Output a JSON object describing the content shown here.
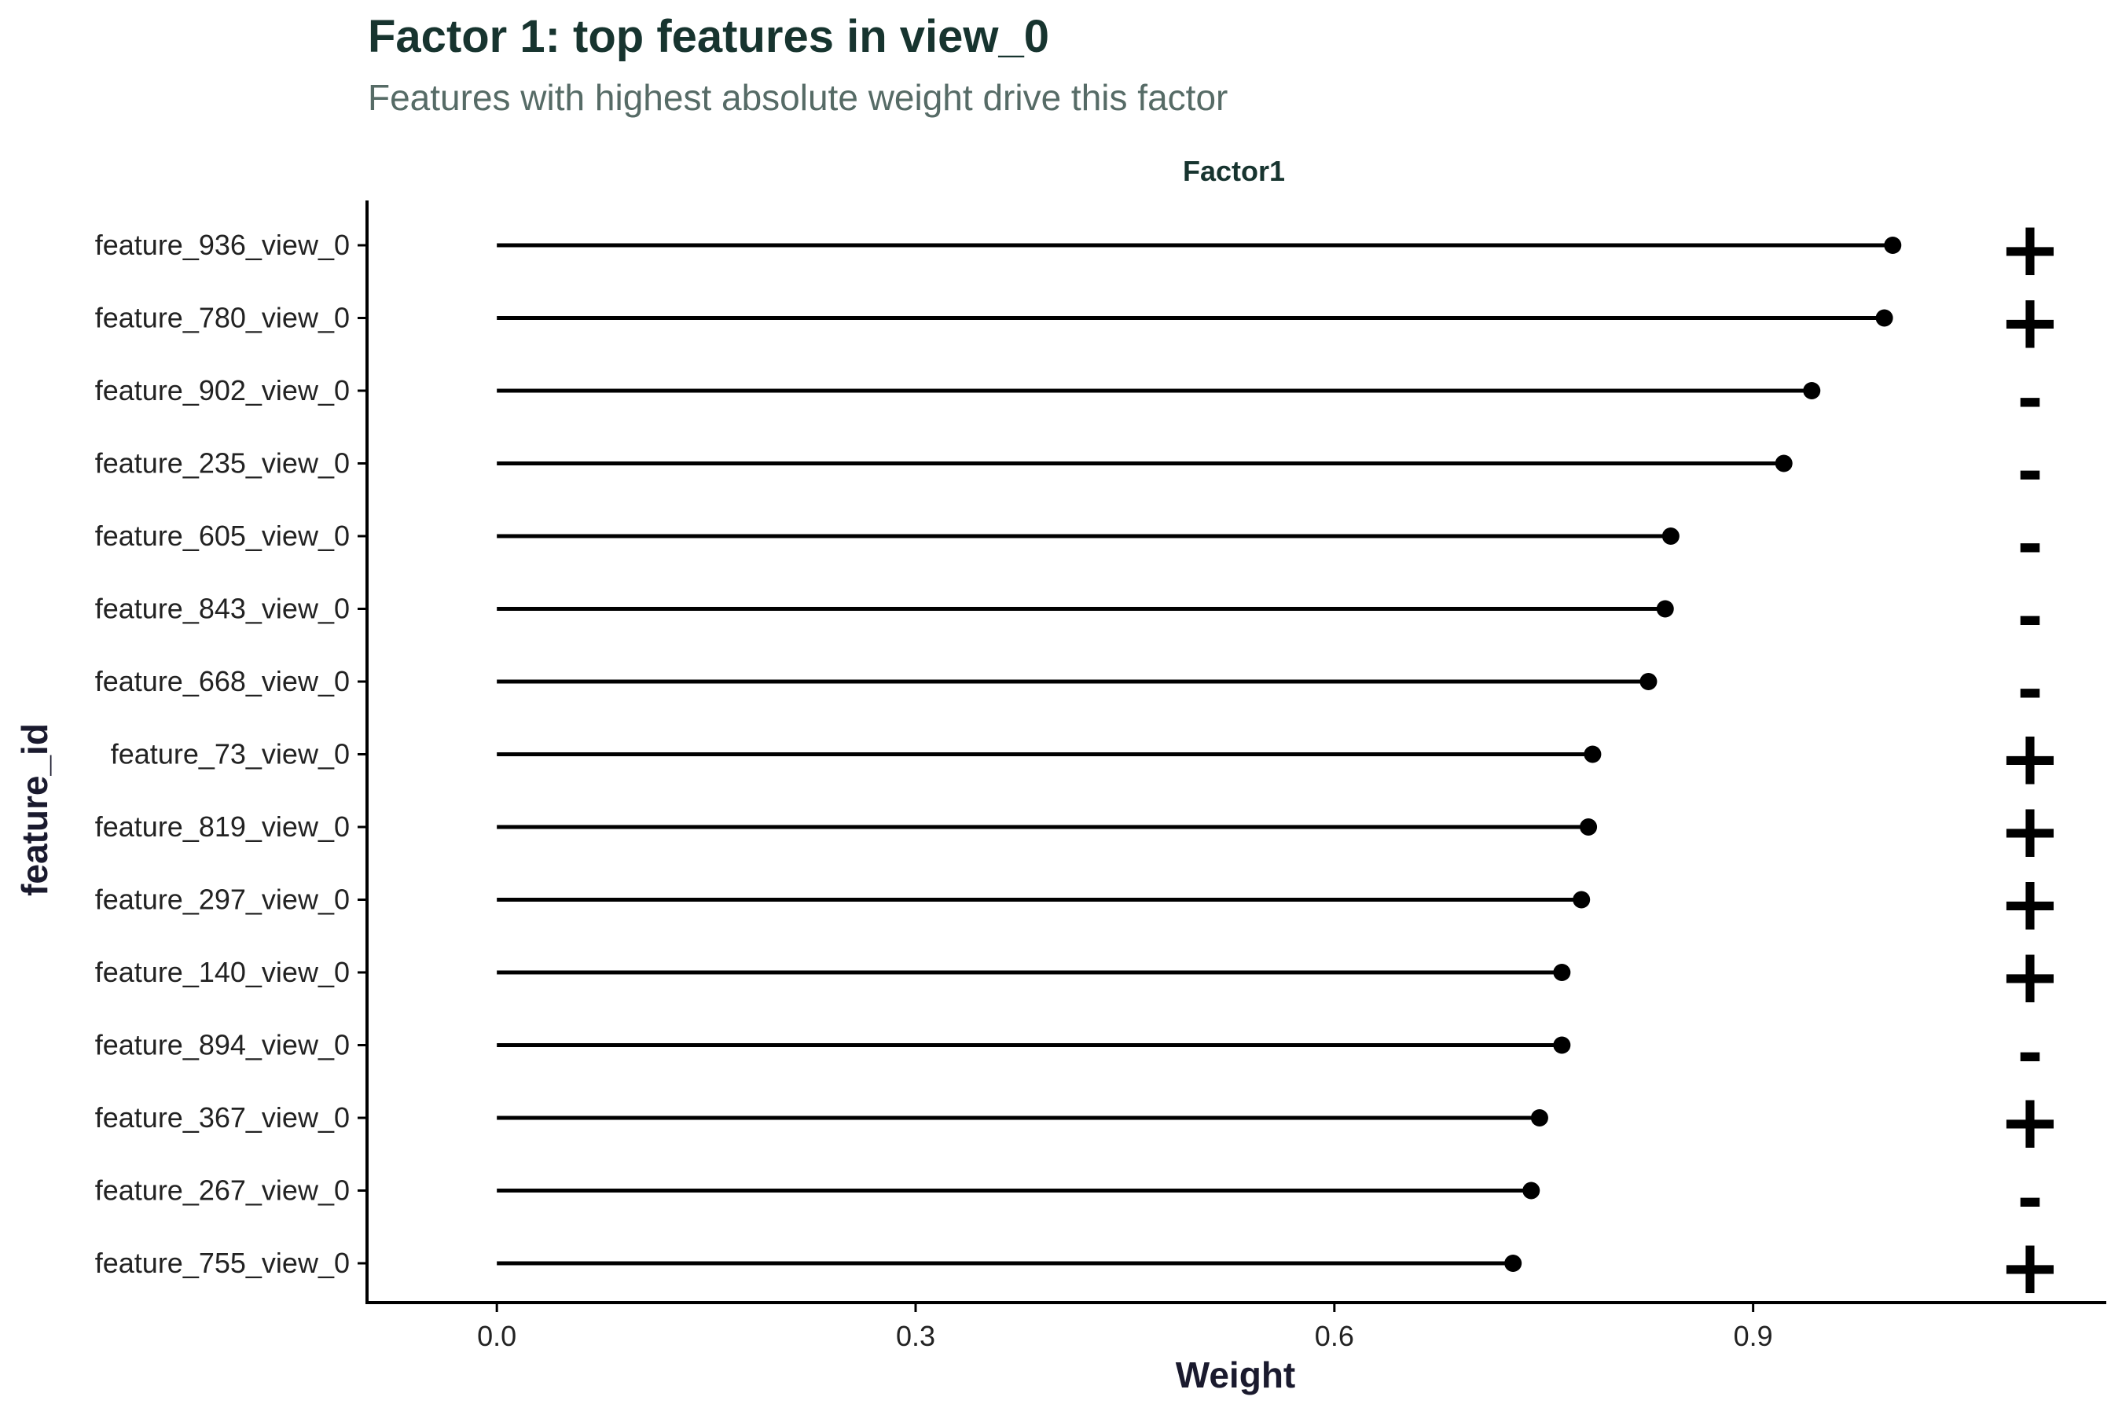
{
  "chart_data": {
    "type": "lollipop",
    "title": "Factor 1: top features in view_0",
    "subtitle": "Features with highest absolute weight drive this factor",
    "facet_label": "Factor1",
    "xlabel": "Weight",
    "ylabel": "feature_id",
    "xlim": [
      -0.093,
      1.153
    ],
    "xticks": [
      0.0,
      0.3,
      0.6,
      0.9
    ],
    "xtick_labels": [
      "0.0",
      "0.3",
      "0.6",
      "0.9"
    ],
    "grid": false,
    "categories": [
      "feature_936_view_0",
      "feature_780_view_0",
      "feature_902_view_0",
      "feature_235_view_0",
      "feature_605_view_0",
      "feature_843_view_0",
      "feature_668_view_0",
      "feature_73_view_0",
      "feature_819_view_0",
      "feature_297_view_0",
      "feature_140_view_0",
      "feature_894_view_0",
      "feature_367_view_0",
      "feature_267_view_0",
      "feature_755_view_0"
    ],
    "values": [
      1.0,
      0.994,
      0.942,
      0.922,
      0.841,
      0.837,
      0.825,
      0.785,
      0.782,
      0.777,
      0.763,
      0.763,
      0.747,
      0.741,
      0.728
    ],
    "signs": [
      "+",
      "+",
      "-",
      "-",
      "-",
      "-",
      "-",
      "+",
      "+",
      "+",
      "+",
      "-",
      "+",
      "-",
      "+"
    ]
  }
}
